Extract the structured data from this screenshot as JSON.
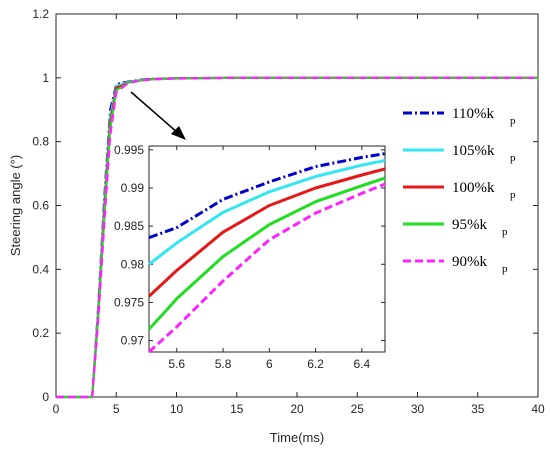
{
  "chart_data": [
    {
      "type": "line",
      "xlabel": "Time(ms)",
      "ylabel": "Steering angle (°)",
      "xlim": [
        0,
        40
      ],
      "ylim": [
        0,
        1.2
      ],
      "xticks": [
        "0",
        "5",
        "10",
        "15",
        "20",
        "25",
        "30",
        "35",
        "40"
      ],
      "yticks": [
        "0",
        "0.2",
        "0.4",
        "0.6",
        "0.8",
        "1",
        "1.2"
      ],
      "grid": false,
      "legend_position": "right",
      "series": [
        {
          "name": "110%k",
          "sub": "p",
          "color": "#0000cc",
          "dash": "dashdot",
          "x": [
            0,
            3,
            3.5,
            4,
            4.5,
            5,
            5.5,
            6,
            7,
            8,
            10,
            15,
            40
          ],
          "y": [
            0,
            0,
            0.28,
            0.62,
            0.9,
            0.98,
            0.9845,
            0.9885,
            0.994,
            0.997,
            0.999,
            1.0,
            1.0
          ]
        },
        {
          "name": "105%k",
          "sub": "p",
          "color": "#33e6f2",
          "dash": "solid",
          "x": [
            0,
            3,
            3.5,
            4,
            4.5,
            5,
            5.5,
            6,
            7,
            8,
            10,
            15,
            40
          ],
          "y": [
            0,
            0,
            0.27,
            0.6,
            0.88,
            0.975,
            0.9805,
            0.9875,
            0.993,
            0.9965,
            0.999,
            1.0,
            1.0
          ]
        },
        {
          "name": "100%k",
          "sub": "p",
          "color": "#e61717",
          "dash": "solid",
          "x": [
            0,
            3,
            3.5,
            4,
            4.5,
            5,
            5.5,
            6,
            7,
            8,
            10,
            15,
            40
          ],
          "y": [
            0,
            0,
            0.26,
            0.58,
            0.86,
            0.97,
            0.976,
            0.986,
            0.992,
            0.996,
            0.9985,
            1.0,
            1.0
          ]
        },
        {
          "name": "95%k",
          "sub": "p",
          "color": "#22dd22",
          "dash": "solid",
          "x": [
            0,
            3,
            3.5,
            4,
            4.5,
            5,
            5.5,
            6,
            7,
            8,
            10,
            15,
            40
          ],
          "y": [
            0,
            0,
            0.25,
            0.56,
            0.84,
            0.962,
            0.972,
            0.985,
            0.9915,
            0.9955,
            0.998,
            1.0,
            1.0
          ]
        },
        {
          "name": "90%k",
          "sub": "p",
          "color": "#ff22ff",
          "dash": "dash",
          "x": [
            0,
            3,
            3.5,
            4,
            4.5,
            5,
            5.5,
            6,
            7,
            8,
            10,
            15,
            40
          ],
          "y": [
            0,
            0,
            0.24,
            0.54,
            0.82,
            0.955,
            0.969,
            0.984,
            0.991,
            0.995,
            0.998,
            1.0,
            1.0
          ]
        }
      ]
    },
    {
      "type": "line",
      "role": "inset",
      "xlim": [
        5.48,
        6.5
      ],
      "ylim": [
        0.9685,
        0.9955
      ],
      "xticks": [
        "5.6",
        "5.8",
        "6",
        "6.2",
        "6.4"
      ],
      "yticks": [
        "0.97",
        "0.975",
        "0.98",
        "0.985",
        "0.99",
        "0.995"
      ],
      "series": [
        {
          "name": "110%k",
          "color": "#0000cc",
          "dash": "dashdot",
          "x": [
            5.48,
            5.6,
            5.8,
            6.0,
            6.2,
            6.4,
            6.5
          ],
          "y": [
            0.9835,
            0.9848,
            0.9885,
            0.9908,
            0.9928,
            0.994,
            0.9945
          ]
        },
        {
          "name": "105%k",
          "color": "#33e6f2",
          "dash": "solid",
          "x": [
            5.48,
            5.6,
            5.8,
            6.0,
            6.2,
            6.4,
            6.5
          ],
          "y": [
            0.98,
            0.9828,
            0.9868,
            0.9895,
            0.9915,
            0.993,
            0.9936
          ]
        },
        {
          "name": "100%k",
          "color": "#e61717",
          "dash": "solid",
          "x": [
            5.48,
            5.6,
            5.8,
            6.0,
            6.2,
            6.4,
            6.5
          ],
          "y": [
            0.9758,
            0.9792,
            0.9842,
            0.9877,
            0.99,
            0.9917,
            0.9925
          ]
        },
        {
          "name": "95%k",
          "color": "#22dd22",
          "dash": "solid",
          "x": [
            5.48,
            5.55,
            5.6,
            5.8,
            6.0,
            6.2,
            6.4,
            6.5
          ],
          "y": [
            0.9715,
            0.9738,
            0.9755,
            0.981,
            0.9852,
            0.9882,
            0.9903,
            0.9913
          ]
        },
        {
          "name": "90%k",
          "color": "#ff22ff",
          "dash": "dash",
          "x": [
            5.48,
            5.6,
            5.8,
            6.0,
            6.2,
            6.4,
            6.5
          ],
          "y": [
            0.9685,
            0.9718,
            0.9778,
            0.9832,
            0.9867,
            0.9893,
            0.9905
          ]
        }
      ]
    }
  ]
}
